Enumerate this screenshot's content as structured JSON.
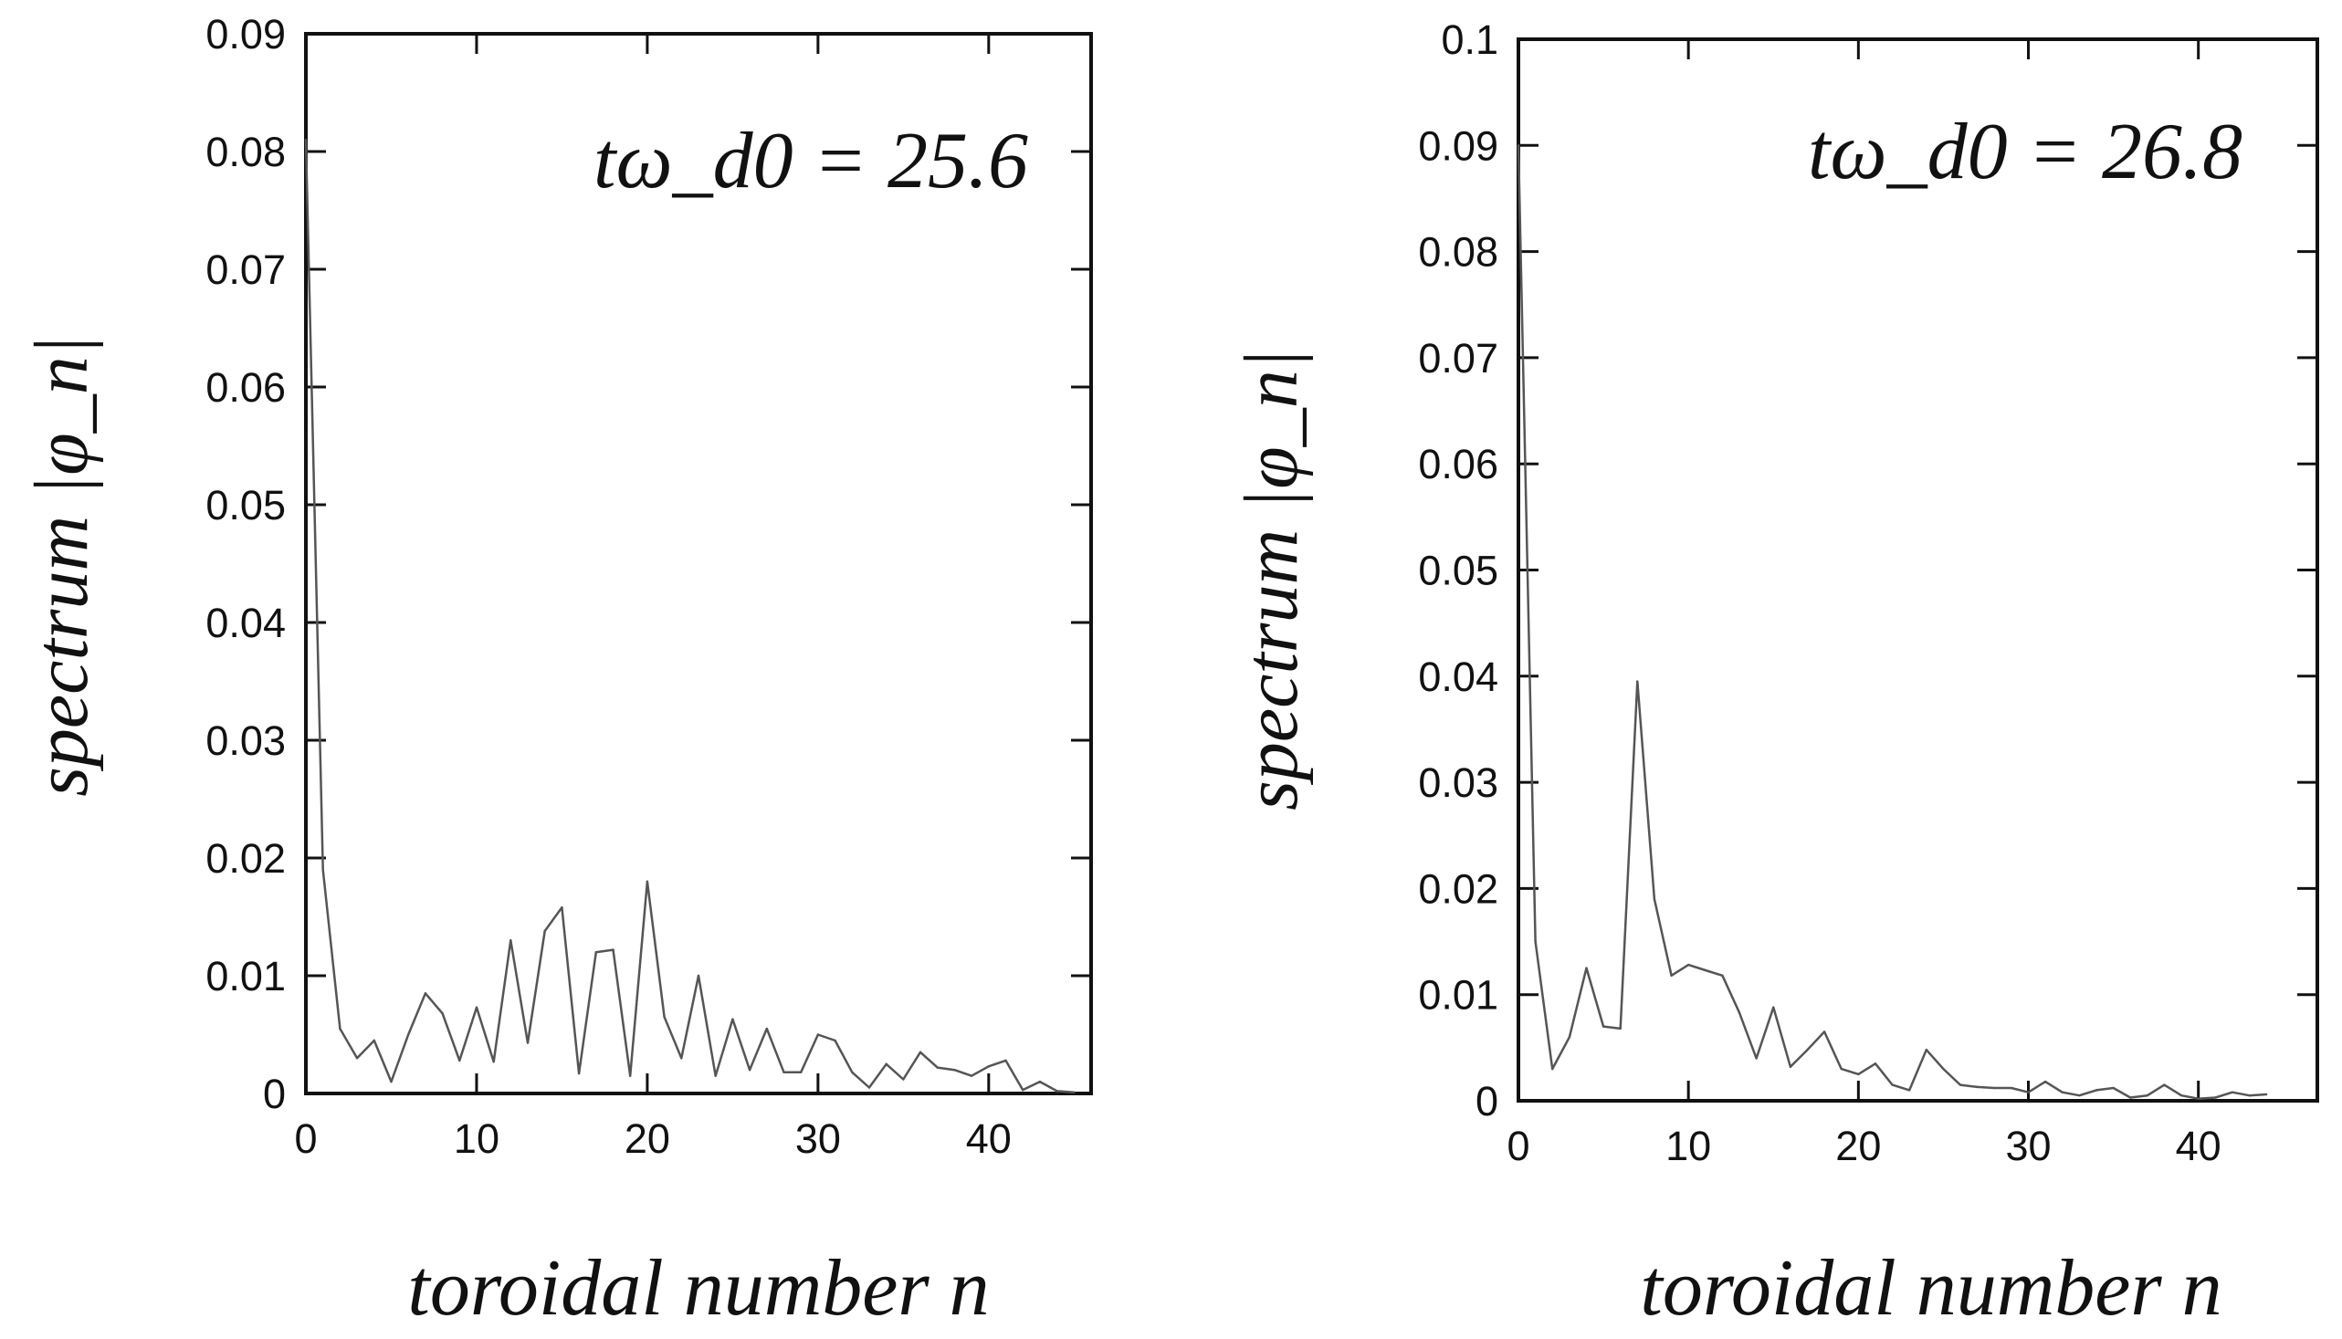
{
  "chart_data": [
    {
      "type": "line",
      "annotation": "tω_d0 = 25.6",
      "ylabel": "spectrum |φ_n|",
      "xlabel": "toroidal  number n",
      "xlim": [
        0,
        46
      ],
      "ylim": [
        0,
        0.09
      ],
      "xticks": [
        0,
        10,
        20,
        30,
        40
      ],
      "xtick_labels": [
        "0",
        "10",
        "20",
        "30",
        "40"
      ],
      "yticks": [
        0,
        0.01,
        0.02,
        0.03,
        0.04,
        0.05,
        0.06,
        0.07,
        0.08,
        0.09
      ],
      "ytick_labels": [
        "0",
        "0.01",
        "0.02",
        "0.03",
        "0.04",
        "0.05",
        "0.06",
        "0.07",
        "0.08",
        "0.09"
      ],
      "series": [
        {
          "name": "spectrum",
          "x": [
            0,
            1,
            2,
            3,
            4,
            5,
            6,
            7,
            8,
            9,
            10,
            11,
            12,
            13,
            14,
            15,
            16,
            17,
            18,
            19,
            20,
            21,
            22,
            23,
            24,
            25,
            26,
            27,
            28,
            29,
            30,
            31,
            32,
            33,
            34,
            35,
            36,
            37,
            38,
            39,
            40,
            41,
            42,
            43,
            44,
            45
          ],
          "values": [
            0.081,
            0.019,
            0.0055,
            0.003,
            0.0045,
            0.001,
            0.005,
            0.0085,
            0.0068,
            0.0028,
            0.0073,
            0.0027,
            0.013,
            0.0043,
            0.0138,
            0.0158,
            0.0017,
            0.012,
            0.0122,
            0.0015,
            0.018,
            0.0065,
            0.003,
            0.01,
            0.0015,
            0.0063,
            0.002,
            0.0055,
            0.0018,
            0.0018,
            0.005,
            0.0045,
            0.0018,
            0.0005,
            0.0025,
            0.0012,
            0.0035,
            0.0022,
            0.002,
            0.0015,
            0.0023,
            0.0028,
            0.0003,
            0.001,
            0.0002,
            0.0001
          ]
        }
      ]
    },
    {
      "type": "line",
      "annotation": "tω_d0 = 26.8",
      "ylabel": "spectrum |φ_n|",
      "xlabel": "toroidal  number n",
      "xlim": [
        0,
        47
      ],
      "ylim": [
        0,
        0.1
      ],
      "xticks": [
        0,
        10,
        20,
        30,
        40
      ],
      "xtick_labels": [
        "0",
        "10",
        "20",
        "30",
        "40"
      ],
      "yticks": [
        0,
        0.01,
        0.02,
        0.03,
        0.04,
        0.05,
        0.06,
        0.07,
        0.08,
        0.09,
        0.1
      ],
      "ytick_labels": [
        "0",
        "0.01",
        "0.02",
        "0.03",
        "0.04",
        "0.05",
        "0.06",
        "0.07",
        "0.08",
        "0.09",
        "0.1"
      ],
      "series": [
        {
          "name": "spectrum",
          "x": [
            0,
            1,
            2,
            3,
            4,
            5,
            6,
            7,
            8,
            9,
            10,
            11,
            12,
            13,
            14,
            15,
            16,
            17,
            18,
            19,
            20,
            21,
            22,
            23,
            24,
            25,
            26,
            27,
            28,
            29,
            30,
            31,
            32,
            33,
            34,
            35,
            36,
            37,
            38,
            39,
            40,
            41,
            42,
            43,
            44
          ],
          "values": [
            0.09,
            0.015,
            0.003,
            0.006,
            0.0125,
            0.007,
            0.0068,
            0.0395,
            0.019,
            0.0118,
            0.0128,
            0.0123,
            0.0118,
            0.0083,
            0.004,
            0.0088,
            0.0032,
            0.0048,
            0.0065,
            0.003,
            0.0025,
            0.0035,
            0.0015,
            0.001,
            0.0048,
            0.003,
            0.0015,
            0.0013,
            0.0012,
            0.0012,
            0.0008,
            0.0018,
            0.0008,
            0.0005,
            0.001,
            0.0012,
            0.0003,
            0.0005,
            0.0015,
            0.0005,
            0.0002,
            0.0003,
            0.0008,
            0.0005,
            0.0006
          ]
        }
      ]
    }
  ]
}
